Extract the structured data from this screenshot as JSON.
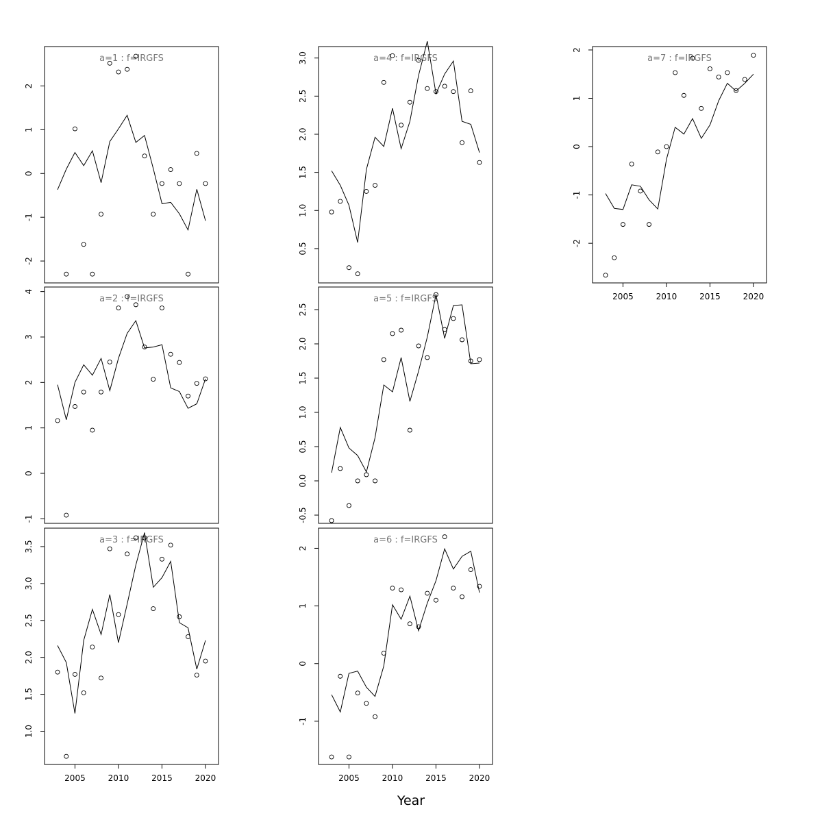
{
  "xlabel": "Year",
  "chart_data": [
    {
      "type": "scatter",
      "title": "a=1 : f=IRGFS",
      "xlim": [
        2001.5,
        2021.5
      ],
      "ylim": [
        -2.5,
        2.9
      ],
      "yticks": [
        -2,
        -1,
        0,
        1,
        2
      ],
      "ytick_labels": [
        "-2",
        "-1",
        "0",
        "1",
        "2"
      ],
      "xticks": [
        2005,
        2010,
        2015,
        2020
      ],
      "xtick_labels": [
        "2005",
        "2010",
        "2015",
        "2020"
      ],
      "show_xaxis": false,
      "x": [
        2003,
        2004,
        2005,
        2006,
        2007,
        2008,
        2009,
        2010,
        2011,
        2012,
        2013,
        2014,
        2015,
        2016,
        2017,
        2018,
        2019,
        2020
      ],
      "series": [
        {
          "kind": "points",
          "values": [
            null,
            -2.3,
            1.02,
            -1.62,
            -2.3,
            -0.93,
            2.52,
            2.32,
            2.38,
            2.68,
            0.4,
            -0.93,
            -0.23,
            0.09,
            -0.23,
            -2.3,
            0.46,
            -0.23
          ]
        },
        {
          "kind": "line",
          "values": [
            -0.37,
            0.1,
            0.48,
            0.18,
            0.52,
            -0.21,
            0.73,
            1.02,
            1.33,
            0.71,
            0.87,
            0.11,
            -0.69,
            -0.66,
            -0.92,
            -1.29,
            -0.36,
            -1.08
          ]
        }
      ]
    },
    {
      "type": "scatter",
      "title": "a=2 : f=IRGFS",
      "xlim": [
        2001.5,
        2021.5
      ],
      "ylim": [
        -1.1,
        4.1
      ],
      "yticks": [
        -1,
        0,
        1,
        2,
        3,
        4
      ],
      "ytick_labels": [
        "-1",
        "0",
        "1",
        "2",
        "3",
        "4"
      ],
      "xticks": [
        2005,
        2010,
        2015,
        2020
      ],
      "xtick_labels": [
        "2005",
        "2010",
        "2015",
        "2020"
      ],
      "show_xaxis": false,
      "x": [
        2003,
        2004,
        2005,
        2006,
        2007,
        2008,
        2009,
        2010,
        2011,
        2012,
        2013,
        2014,
        2015,
        2016,
        2017,
        2018,
        2019,
        2020
      ],
      "series": [
        {
          "kind": "points",
          "values": [
            1.16,
            -0.92,
            1.47,
            1.79,
            0.95,
            1.79,
            2.45,
            3.64,
            3.89,
            3.71,
            2.78,
            2.07,
            3.64,
            2.62,
            2.44,
            1.7,
            1.98,
            2.08
          ]
        },
        {
          "kind": "line",
          "values": [
            1.95,
            1.18,
            2.0,
            2.39,
            2.16,
            2.53,
            1.82,
            2.53,
            3.08,
            3.36,
            2.76,
            2.78,
            2.83,
            1.88,
            1.8,
            1.43,
            1.53,
            2.08
          ]
        }
      ]
    },
    {
      "type": "scatter",
      "title": "a=3 : f=IRGFS",
      "xlim": [
        2001.5,
        2021.5
      ],
      "ylim": [
        0.55,
        3.75
      ],
      "yticks": [
        1.0,
        1.5,
        2.0,
        2.5,
        3.0,
        3.5
      ],
      "ytick_labels": [
        "1.0",
        "1.5",
        "2.0",
        "2.5",
        "3.0",
        "3.5"
      ],
      "xticks": [
        2005,
        2010,
        2015,
        2020
      ],
      "xtick_labels": [
        "2005",
        "2010",
        "2015",
        "2020"
      ],
      "show_xaxis": true,
      "x": [
        2003,
        2004,
        2005,
        2006,
        2007,
        2008,
        2009,
        2010,
        2011,
        2012,
        2013,
        2014,
        2015,
        2016,
        2017,
        2018,
        2019,
        2020
      ],
      "series": [
        {
          "kind": "points",
          "values": [
            1.8,
            0.66,
            1.77,
            1.52,
            2.14,
            1.72,
            3.47,
            2.58,
            3.4,
            3.62,
            3.62,
            2.66,
            3.33,
            3.52,
            2.55,
            2.28,
            1.76,
            1.95
          ]
        },
        {
          "kind": "line",
          "values": [
            2.16,
            1.93,
            1.24,
            2.23,
            2.65,
            2.31,
            2.85,
            2.2,
            2.72,
            3.25,
            3.69,
            2.95,
            3.08,
            3.3,
            2.47,
            2.4,
            1.84,
            2.23
          ]
        }
      ]
    },
    {
      "type": "scatter",
      "title": "a=4 : f=IRGFS",
      "xlim": [
        2001.5,
        2021.5
      ],
      "ylim": [
        0.05,
        3.15
      ],
      "yticks": [
        0.5,
        1.0,
        1.5,
        2.0,
        2.5,
        3.0
      ],
      "ytick_labels": [
        "0.5",
        "1.0",
        "1.5",
        "2.0",
        "2.5",
        "3.0"
      ],
      "xticks": [
        2005,
        2010,
        2015,
        2020
      ],
      "xtick_labels": [
        "2005",
        "2010",
        "2015",
        "2020"
      ],
      "show_xaxis": false,
      "x": [
        2003,
        2004,
        2005,
        2006,
        2007,
        2008,
        2009,
        2010,
        2011,
        2012,
        2013,
        2014,
        2015,
        2016,
        2017,
        2018,
        2019,
        2020
      ],
      "series": [
        {
          "kind": "points",
          "values": [
            0.98,
            1.12,
            0.25,
            0.17,
            1.25,
            1.33,
            2.68,
            3.03,
            2.12,
            2.42,
            2.97,
            2.6,
            2.56,
            2.63,
            2.56,
            1.89,
            2.57,
            1.63
          ]
        },
        {
          "kind": "line",
          "values": [
            1.52,
            1.33,
            1.07,
            0.58,
            1.54,
            1.96,
            1.84,
            2.34,
            1.81,
            2.17,
            2.77,
            3.22,
            2.53,
            2.79,
            2.96,
            2.17,
            2.13,
            1.76
          ]
        }
      ]
    },
    {
      "type": "scatter",
      "title": "a=5 : f=IRGFS",
      "xlim": [
        2001.5,
        2021.5
      ],
      "ylim": [
        -0.62,
        2.83
      ],
      "yticks": [
        -0.5,
        0.0,
        0.5,
        1.0,
        1.5,
        2.0,
        2.5
      ],
      "ytick_labels": [
        "-0.5",
        "0.0",
        "0.5",
        "1.0",
        "1.5",
        "2.0",
        "2.5"
      ],
      "xticks": [
        2005,
        2010,
        2015,
        2020
      ],
      "xtick_labels": [
        "2005",
        "2010",
        "2015",
        "2020"
      ],
      "show_xaxis": false,
      "x": [
        2003,
        2004,
        2005,
        2006,
        2007,
        2008,
        2009,
        2010,
        2011,
        2012,
        2013,
        2014,
        2015,
        2016,
        2017,
        2018,
        2019,
        2020
      ],
      "series": [
        {
          "kind": "points",
          "values": [
            -0.58,
            0.18,
            -0.36,
            0.0,
            0.09,
            0.0,
            1.77,
            2.15,
            2.2,
            0.74,
            1.97,
            1.8,
            2.72,
            2.21,
            2.37,
            2.06,
            1.75,
            1.77
          ]
        },
        {
          "kind": "line",
          "values": [
            0.12,
            0.78,
            0.48,
            0.37,
            0.13,
            0.63,
            1.4,
            1.3,
            1.8,
            1.16,
            1.6,
            2.1,
            2.72,
            2.08,
            2.56,
            2.57,
            1.71,
            1.72
          ]
        }
      ]
    },
    {
      "type": "scatter",
      "title": "a=6 : f=IRGFS",
      "xlim": [
        2001.5,
        2021.5
      ],
      "ylim": [
        -1.75,
        2.35
      ],
      "yticks": [
        -1,
        0,
        1,
        2
      ],
      "ytick_labels": [
        "-1",
        "0",
        "1",
        "2"
      ],
      "xticks": [
        2005,
        2010,
        2015,
        2020
      ],
      "xtick_labels": [
        "2005",
        "2010",
        "2015",
        "2020"
      ],
      "show_xaxis": true,
      "x": [
        2003,
        2004,
        2005,
        2006,
        2007,
        2008,
        2009,
        2010,
        2011,
        2012,
        2013,
        2014,
        2015,
        2016,
        2017,
        2018,
        2019,
        2020
      ],
      "series": [
        {
          "kind": "points",
          "values": [
            -1.62,
            -0.22,
            -1.62,
            -0.51,
            -0.69,
            -0.92,
            0.18,
            1.31,
            1.28,
            0.69,
            0.64,
            1.22,
            1.1,
            2.2,
            1.31,
            1.16,
            1.63,
            1.34
          ]
        },
        {
          "kind": "line",
          "values": [
            -0.54,
            -0.84,
            -0.17,
            -0.13,
            -0.41,
            -0.57,
            -0.04,
            1.02,
            0.77,
            1.17,
            0.57,
            1.05,
            1.44,
            1.99,
            1.64,
            1.86,
            1.95,
            1.23
          ]
        }
      ]
    },
    {
      "type": "scatter",
      "title": "a=7 : f=IRGFS",
      "xlim": [
        2001.5,
        2021.5
      ],
      "ylim": [
        -2.82,
        2.07
      ],
      "yticks": [
        -2,
        -1,
        0,
        1,
        2
      ],
      "ytick_labels": [
        "-2",
        "-1",
        "0",
        "1",
        "2"
      ],
      "xticks": [
        2005,
        2010,
        2015,
        2020
      ],
      "xtick_labels": [
        "2005",
        "2010",
        "2015",
        "2020"
      ],
      "show_xaxis": true,
      "x": [
        2003,
        2004,
        2005,
        2006,
        2007,
        2008,
        2009,
        2010,
        2011,
        2012,
        2013,
        2014,
        2015,
        2016,
        2017,
        2018,
        2019,
        2020
      ],
      "series": [
        {
          "kind": "points",
          "values": [
            -2.66,
            -2.3,
            -1.61,
            -0.36,
            -0.92,
            -1.61,
            -0.11,
            0.0,
            1.53,
            1.06,
            1.83,
            0.79,
            1.61,
            1.44,
            1.53,
            1.16,
            1.39,
            1.89
          ]
        },
        {
          "kind": "line",
          "values": [
            -0.97,
            -1.28,
            -1.3,
            -0.79,
            -0.82,
            -1.1,
            -1.29,
            -0.26,
            0.4,
            0.26,
            0.58,
            0.17,
            0.45,
            0.95,
            1.31,
            1.15,
            1.31,
            1.5
          ]
        }
      ]
    }
  ]
}
